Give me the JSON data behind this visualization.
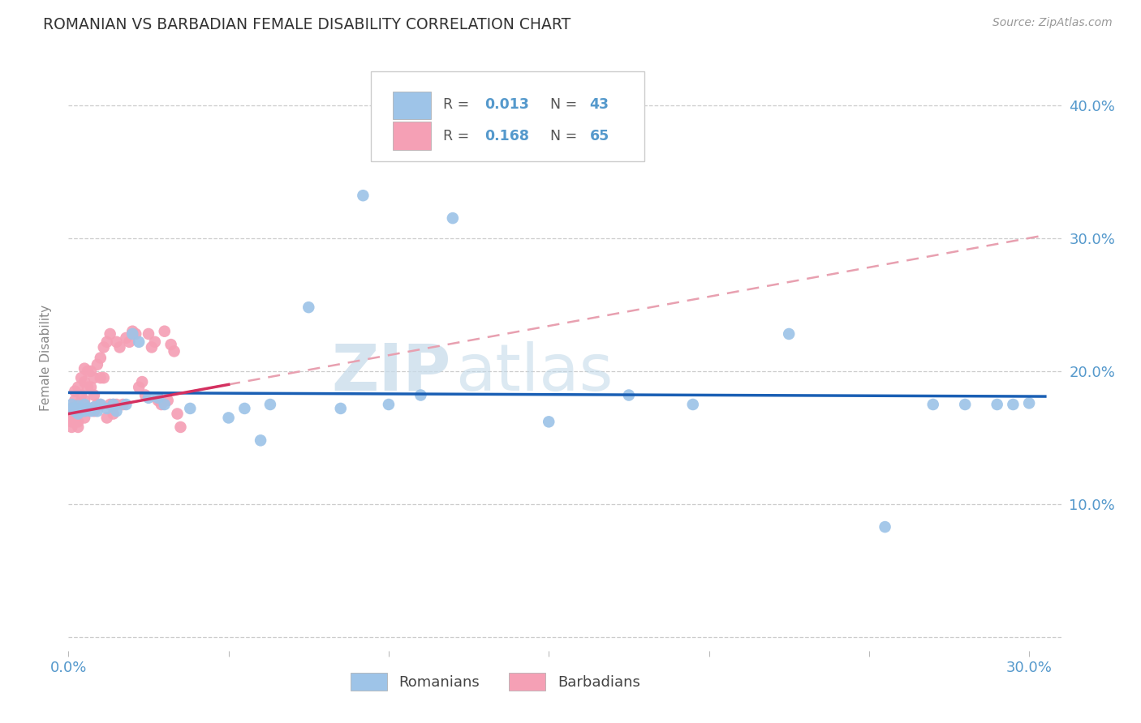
{
  "title": "ROMANIAN VS BARBADIAN FEMALE DISABILITY CORRELATION CHART",
  "source": "Source: ZipAtlas.com",
  "ylabel": "Female Disability",
  "xlim": [
    0.0,
    0.31
  ],
  "ylim": [
    -0.01,
    0.43
  ],
  "ytick_positions": [
    0.0,
    0.1,
    0.2,
    0.3,
    0.4
  ],
  "ytick_labels": [
    "",
    "10.0%",
    "20.0%",
    "30.0%",
    "40.0%"
  ],
  "xtick_positions": [
    0.0,
    0.05,
    0.1,
    0.15,
    0.2,
    0.25,
    0.3
  ],
  "xtick_labels": [
    "0.0%",
    "",
    "",
    "",
    "",
    "",
    "30.0%"
  ],
  "romanian_color": "#9ec4e8",
  "barbadian_color": "#f5a0b5",
  "trendline_romanian_color": "#1a5fb4",
  "trendline_barbadian_solid": "#d43060",
  "trendline_barbadian_dash": "#e8a0b0",
  "background_color": "#ffffff",
  "watermark_color": "#d0e4f0",
  "axis_label_color": "#5599cc",
  "ylabel_color": "#888888",
  "title_color": "#333333",
  "source_color": "#999999",
  "grid_color": "#cccccc",
  "legend_text_dark": "#555555",
  "romanians_R": "0.013",
  "romanians_N": "43",
  "barbadians_R": "0.168",
  "barbadians_N": "65",
  "rom_x": [
    0.001,
    0.001,
    0.002,
    0.003,
    0.003,
    0.004,
    0.005,
    0.005,
    0.006,
    0.007,
    0.008,
    0.009,
    0.01,
    0.012,
    0.014,
    0.015,
    0.018,
    0.02,
    0.022,
    0.025,
    0.028,
    0.03,
    0.038,
    0.05,
    0.055,
    0.06,
    0.063,
    0.075,
    0.085,
    0.092,
    0.1,
    0.11,
    0.12,
    0.15,
    0.175,
    0.195,
    0.225,
    0.255,
    0.27,
    0.28,
    0.29,
    0.295,
    0.3
  ],
  "rom_y": [
    0.175,
    0.172,
    0.17,
    0.174,
    0.168,
    0.172,
    0.17,
    0.175,
    0.172,
    0.17,
    0.173,
    0.17,
    0.175,
    0.172,
    0.175,
    0.17,
    0.175,
    0.228,
    0.222,
    0.18,
    0.18,
    0.175,
    0.172,
    0.165,
    0.172,
    0.148,
    0.175,
    0.248,
    0.172,
    0.332,
    0.175,
    0.182,
    0.315,
    0.162,
    0.182,
    0.175,
    0.228,
    0.083,
    0.175,
    0.175,
    0.175,
    0.175,
    0.176
  ],
  "barb_x": [
    0.001,
    0.001,
    0.001,
    0.001,
    0.001,
    0.002,
    0.002,
    0.002,
    0.002,
    0.003,
    0.003,
    0.003,
    0.003,
    0.003,
    0.004,
    0.004,
    0.004,
    0.005,
    0.005,
    0.005,
    0.005,
    0.006,
    0.006,
    0.006,
    0.007,
    0.007,
    0.007,
    0.008,
    0.008,
    0.008,
    0.009,
    0.009,
    0.01,
    0.01,
    0.01,
    0.011,
    0.011,
    0.012,
    0.012,
    0.013,
    0.013,
    0.014,
    0.014,
    0.015,
    0.015,
    0.016,
    0.017,
    0.018,
    0.019,
    0.02,
    0.021,
    0.022,
    0.023,
    0.024,
    0.025,
    0.026,
    0.027,
    0.028,
    0.029,
    0.03,
    0.031,
    0.032,
    0.033,
    0.034,
    0.035
  ],
  "barb_y": [
    0.172,
    0.168,
    0.162,
    0.158,
    0.165,
    0.185,
    0.178,
    0.17,
    0.162,
    0.188,
    0.175,
    0.168,
    0.162,
    0.158,
    0.195,
    0.182,
    0.17,
    0.202,
    0.192,
    0.178,
    0.165,
    0.2,
    0.188,
    0.172,
    0.2,
    0.188,
    0.172,
    0.195,
    0.182,
    0.17,
    0.205,
    0.175,
    0.21,
    0.195,
    0.175,
    0.218,
    0.195,
    0.222,
    0.165,
    0.228,
    0.175,
    0.175,
    0.168,
    0.222,
    0.175,
    0.218,
    0.175,
    0.225,
    0.222,
    0.23,
    0.228,
    0.188,
    0.192,
    0.182,
    0.228,
    0.218,
    0.222,
    0.178,
    0.175,
    0.23,
    0.178,
    0.22,
    0.215,
    0.168,
    0.158
  ]
}
